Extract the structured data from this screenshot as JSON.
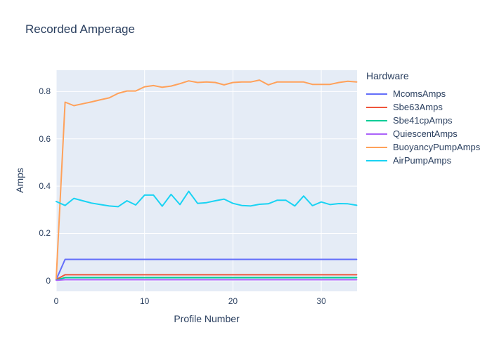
{
  "chart_data": {
    "type": "line",
    "title": "Recorded Amperage",
    "xlabel": "Profile Number",
    "ylabel": "Amps",
    "legend_title": "Hardware",
    "legend_position": "right",
    "grid": true,
    "plot_bg": "#e5ecf6",
    "grid_color": "#ffffff",
    "text_color": "#2a3f5f",
    "xlim": [
      0,
      34.05
    ],
    "ylim": [
      -0.045,
      0.89
    ],
    "x_ticks": [
      {
        "value": 0,
        "label": "0"
      },
      {
        "value": 10,
        "label": "10"
      },
      {
        "value": 20,
        "label": "20"
      },
      {
        "value": 30,
        "label": "30"
      }
    ],
    "y_ticks": [
      {
        "value": 0,
        "label": "0"
      },
      {
        "value": 0.2,
        "label": "0.2"
      },
      {
        "value": 0.4,
        "label": "0.4"
      },
      {
        "value": 0.6,
        "label": "0.6"
      },
      {
        "value": 0.8,
        "label": "0.8"
      }
    ],
    "x": [
      0,
      1,
      2,
      3,
      4,
      5,
      6,
      7,
      8,
      9,
      10,
      11,
      12,
      13,
      14,
      15,
      16,
      17,
      18,
      19,
      20,
      21,
      22,
      23,
      24,
      25,
      26,
      27,
      28,
      29,
      30,
      31,
      32,
      33,
      34
    ],
    "series": [
      {
        "name": "McomsAmps",
        "color": "#636efa",
        "values": [
          0.005,
          0.09,
          0.09,
          0.09,
          0.09,
          0.09,
          0.09,
          0.09,
          0.09,
          0.09,
          0.09,
          0.09,
          0.09,
          0.09,
          0.09,
          0.09,
          0.09,
          0.09,
          0.09,
          0.09,
          0.09,
          0.09,
          0.09,
          0.09,
          0.09,
          0.09,
          0.09,
          0.09,
          0.09,
          0.09,
          0.09,
          0.09,
          0.09,
          0.09,
          0.09
        ]
      },
      {
        "name": "Sbe63Amps",
        "color": "#ef553b",
        "values": [
          0.005,
          0.025,
          0.025,
          0.025,
          0.025,
          0.025,
          0.025,
          0.025,
          0.025,
          0.025,
          0.025,
          0.025,
          0.025,
          0.025,
          0.025,
          0.025,
          0.025,
          0.025,
          0.025,
          0.025,
          0.025,
          0.025,
          0.025,
          0.025,
          0.025,
          0.025,
          0.025,
          0.025,
          0.025,
          0.025,
          0.025,
          0.025,
          0.025,
          0.025,
          0.025
        ]
      },
      {
        "name": "Sbe41cpAmps",
        "color": "#00cc96",
        "values": [
          0.003,
          0.013,
          0.013,
          0.013,
          0.013,
          0.013,
          0.013,
          0.013,
          0.013,
          0.013,
          0.013,
          0.013,
          0.013,
          0.013,
          0.013,
          0.013,
          0.013,
          0.013,
          0.013,
          0.013,
          0.013,
          0.013,
          0.013,
          0.013,
          0.013,
          0.013,
          0.013,
          0.013,
          0.013,
          0.013,
          0.013,
          0.013,
          0.013,
          0.013,
          0.013
        ]
      },
      {
        "name": "QuiescentAmps",
        "color": "#ab63fa",
        "values": [
          0.002,
          0.004,
          0.004,
          0.004,
          0.004,
          0.004,
          0.004,
          0.004,
          0.004,
          0.004,
          0.004,
          0.004,
          0.004,
          0.004,
          0.004,
          0.004,
          0.004,
          0.004,
          0.004,
          0.004,
          0.004,
          0.004,
          0.004,
          0.004,
          0.004,
          0.004,
          0.004,
          0.004,
          0.004,
          0.004,
          0.004,
          0.004,
          0.004,
          0.004,
          0.004
        ]
      },
      {
        "name": "BuoyancyPumpAmps",
        "color": "#ffa15a",
        "values": [
          0.01,
          0.755,
          0.74,
          0.748,
          0.756,
          0.765,
          0.773,
          0.792,
          0.802,
          0.802,
          0.82,
          0.825,
          0.818,
          0.823,
          0.833,
          0.845,
          0.838,
          0.84,
          0.838,
          0.828,
          0.838,
          0.84,
          0.84,
          0.848,
          0.828,
          0.84,
          0.84,
          0.84,
          0.84,
          0.83,
          0.83,
          0.83,
          0.838,
          0.843,
          0.84
        ]
      },
      {
        "name": "AirPumpAmps",
        "color": "#19d3f3",
        "values": [
          0.335,
          0.318,
          0.348,
          0.338,
          0.328,
          0.322,
          0.316,
          0.313,
          0.338,
          0.32,
          0.362,
          0.362,
          0.315,
          0.365,
          0.322,
          0.378,
          0.327,
          0.33,
          0.338,
          0.345,
          0.327,
          0.318,
          0.316,
          0.323,
          0.325,
          0.34,
          0.34,
          0.316,
          0.358,
          0.317,
          0.333,
          0.322,
          0.326,
          0.325,
          0.319
        ]
      }
    ]
  }
}
